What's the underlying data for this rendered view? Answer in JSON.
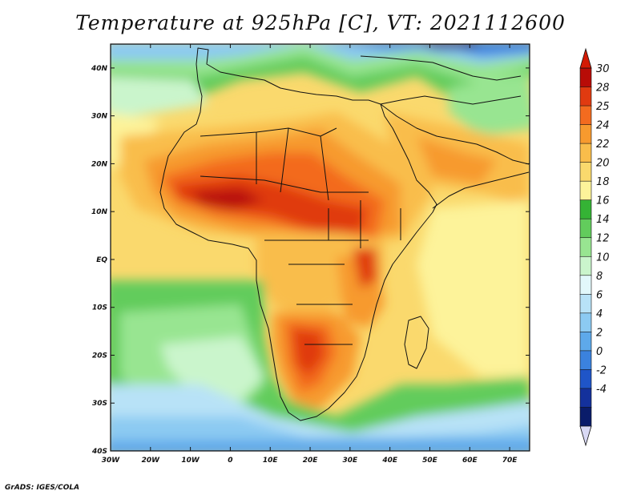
{
  "title": "Temperature at 925hPa [C], VT: 2021112600",
  "credit": "GrADS: IGES/COLA",
  "lat_labels": [
    "40N",
    "30N",
    "20N",
    "10N",
    "EQ",
    "10S",
    "20S",
    "30S",
    "40S"
  ],
  "lon_labels": [
    "30W",
    "20W",
    "10W",
    "0",
    "10E",
    "20E",
    "30E",
    "40E",
    "50E",
    "60E",
    "70E"
  ],
  "colorbar": {
    "labels": [
      "30",
      "28",
      "25",
      "24",
      "22",
      "20",
      "18",
      "16",
      "14",
      "12",
      "10",
      "8",
      "6",
      "4",
      "2",
      "0",
      "-2",
      "-4"
    ],
    "colors": [
      "#b80c07",
      "#e03a10",
      "#f36b1f",
      "#f79a2e",
      "#f9bd4b",
      "#fad96d",
      "#fdf39a",
      "#35b335",
      "#62cc5c",
      "#98e591",
      "#caf5cc",
      "#e2f8fb",
      "#b8e2f7",
      "#8ccaf2",
      "#5ea9ea",
      "#3b82de",
      "#1f55c8",
      "#14319c",
      "#0a1c6a"
    ],
    "arrow_top": "#d31a05",
    "arrow_bottom": "#d9d9f4"
  }
}
